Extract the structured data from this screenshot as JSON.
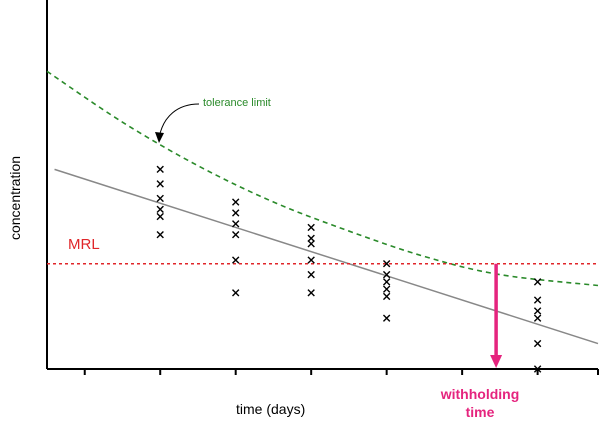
{
  "chart_data": {
    "type": "scatter",
    "xlabel": "time (days)",
    "ylabel": "concentration",
    "xlim": [
      0,
      7.3
    ],
    "ylim": [
      0,
      10
    ],
    "x_ticks": [
      0.5,
      1.5,
      2.5,
      3.5,
      4.5,
      5.5,
      6.5,
      7.3
    ],
    "series": [
      {
        "points": [
          {
            "x": 1.5,
            "y": 5.5
          },
          {
            "x": 1.5,
            "y": 5.1
          },
          {
            "x": 1.5,
            "y": 4.7
          },
          {
            "x": 1.5,
            "y": 4.4
          },
          {
            "x": 1.5,
            "y": 4.2
          },
          {
            "x": 1.5,
            "y": 3.7
          },
          {
            "x": 2.5,
            "y": 4.6
          },
          {
            "x": 2.5,
            "y": 4.3
          },
          {
            "x": 2.5,
            "y": 4.0
          },
          {
            "x": 2.5,
            "y": 3.7
          },
          {
            "x": 2.5,
            "y": 3.0
          },
          {
            "x": 2.5,
            "y": 2.1
          },
          {
            "x": 3.5,
            "y": 3.9
          },
          {
            "x": 3.5,
            "y": 3.6
          },
          {
            "x": 3.5,
            "y": 3.45
          },
          {
            "x": 3.5,
            "y": 3.0
          },
          {
            "x": 3.5,
            "y": 2.6
          },
          {
            "x": 3.5,
            "y": 2.1
          },
          {
            "x": 4.5,
            "y": 2.9
          },
          {
            "x": 4.5,
            "y": 2.6
          },
          {
            "x": 4.5,
            "y": 2.4
          },
          {
            "x": 4.5,
            "y": 2.2
          },
          {
            "x": 4.5,
            "y": 2.0
          },
          {
            "x": 4.5,
            "y": 1.4
          },
          {
            "x": 6.5,
            "y": 2.4
          },
          {
            "x": 6.5,
            "y": 1.9
          },
          {
            "x": 6.5,
            "y": 1.6
          },
          {
            "x": 6.5,
            "y": 1.4
          },
          {
            "x": 6.5,
            "y": 0.7
          },
          {
            "x": 6.5,
            "y": 0.0
          }
        ],
        "color": "#000000"
      }
    ],
    "regression_line": {
      "x": [
        0.1,
        7.3
      ],
      "y": [
        5.5,
        0.7
      ],
      "color": "#888888"
    },
    "tolerance_limit": {
      "label": "tolerance limit",
      "x": [
        0.0,
        1.0,
        2.0,
        3.0,
        4.0,
        5.0,
        6.0,
        7.3
      ],
      "y": [
        8.2,
        6.8,
        5.6,
        4.6,
        3.8,
        3.1,
        2.6,
        2.3
      ],
      "color": "#2a8a2a",
      "dash": true
    },
    "mrl": {
      "label": "MRL",
      "y": 2.9,
      "color": "#e0262a"
    },
    "withholding_time": {
      "label": "withholding time",
      "x": 5.95,
      "color": "#e5247e"
    },
    "grid": false
  }
}
